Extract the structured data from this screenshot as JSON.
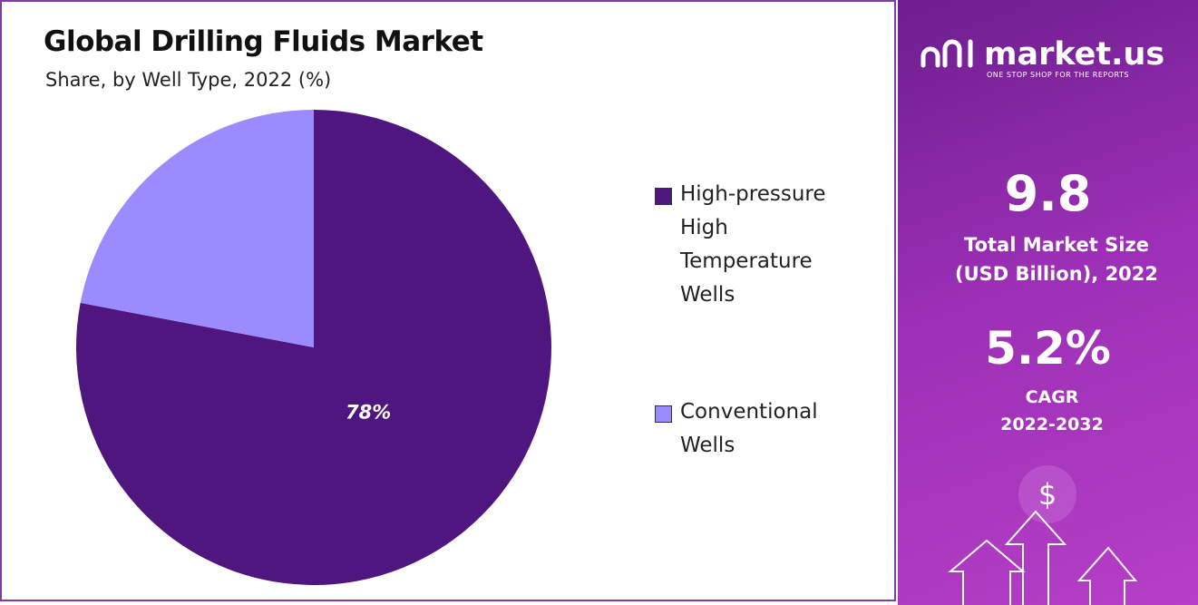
{
  "chart_data": {
    "type": "pie",
    "title": "Global Drilling Fluids Market",
    "subtitle": "Share, by Well Type, 2022 (%)",
    "categories": [
      "High-pressure High Temperature Wells",
      "Conventional Wells"
    ],
    "values": [
      78,
      22
    ],
    "value_labels": [
      "78%",
      null
    ],
    "colors": [
      "#4f1680",
      "#9a8cff"
    ],
    "legend": "right"
  },
  "panel": {
    "brand": "market.us",
    "tagline": "ONE STOP SHOP FOR THE REPORTS",
    "market_size": "9.8",
    "market_size_label": "Total Market Size (USD Billion), 2022",
    "cagr": "5.2%",
    "cagr_label": "CAGR 2022-2032"
  }
}
